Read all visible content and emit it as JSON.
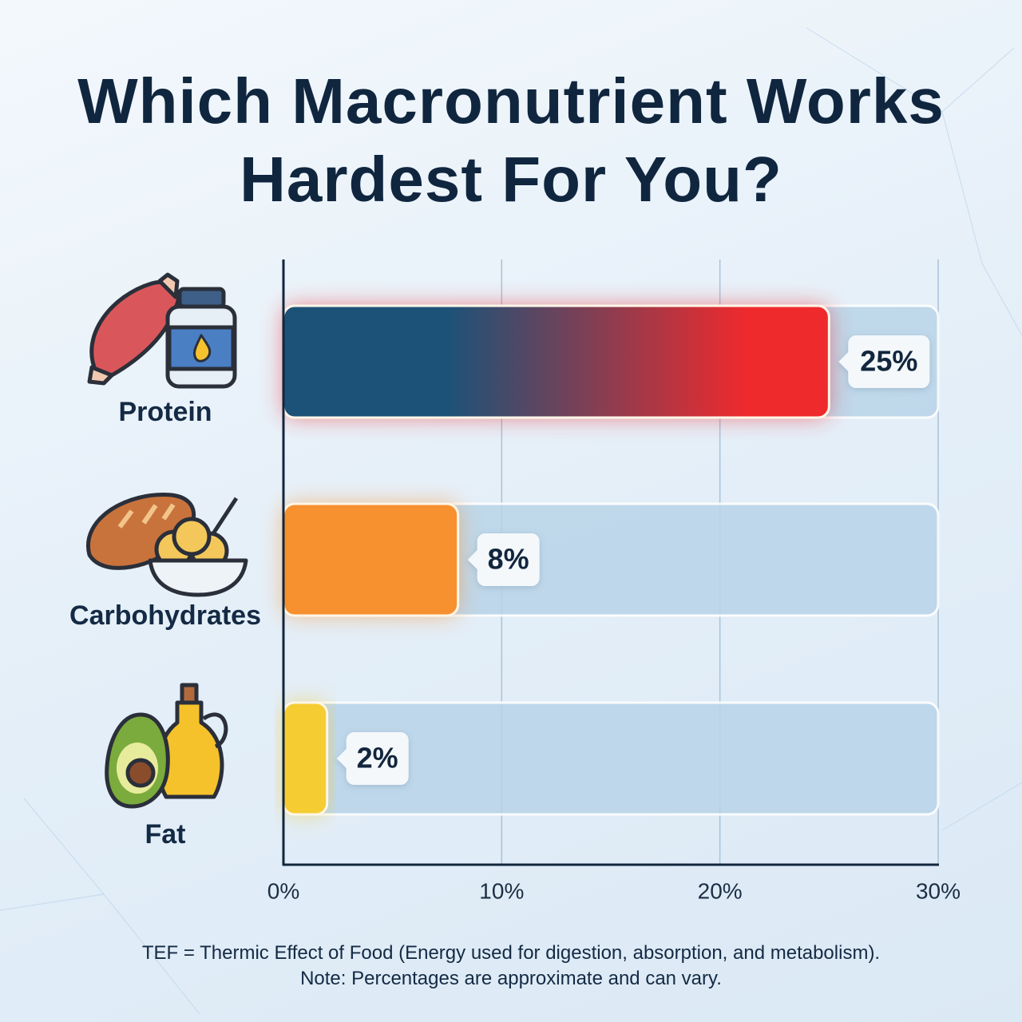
{
  "chart_data": {
    "type": "bar",
    "orientation": "horizontal",
    "title": "Which Macronutrient Works Hardest For You?",
    "categories": [
      "Protein",
      "Carbohydrates",
      "Fat"
    ],
    "values": [
      25,
      8,
      2
    ],
    "value_labels": [
      "25%",
      "8%",
      "2%"
    ],
    "colors": [
      "#ef2a2d",
      "#f7902e",
      "#f6cc33"
    ],
    "track_color": "#b9d4e8",
    "xlim": [
      0,
      30
    ],
    "xticks": [
      {
        "value": 0,
        "label": "0%"
      },
      {
        "value": 10,
        "label": "10%"
      },
      {
        "value": 20,
        "label": "20%"
      },
      {
        "value": 30,
        "label": "30%"
      }
    ],
    "grid": true,
    "notes": [
      "TEF = Thermic Effect of Food (Energy used for digestion, absorption, and metabolism).",
      "Note: Percentages are approximate and can vary."
    ]
  }
}
